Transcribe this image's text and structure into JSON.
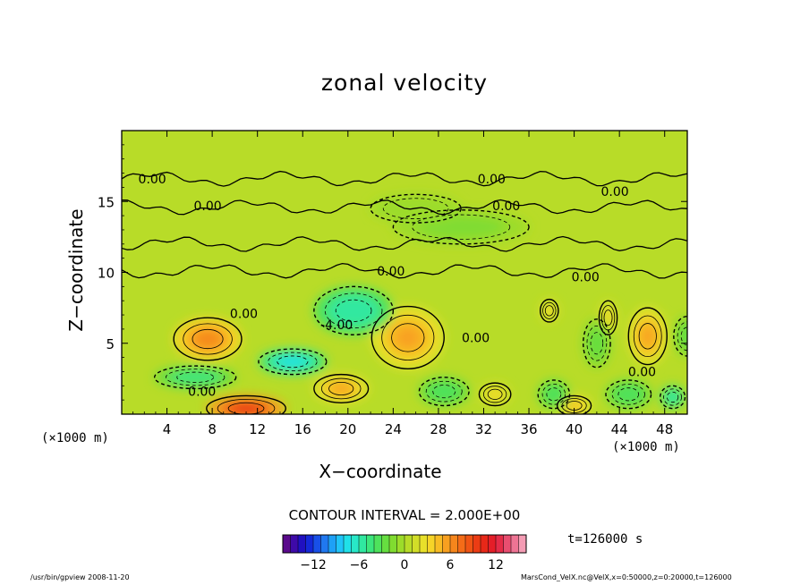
{
  "chart_data": {
    "type": "heatmap",
    "title": "zonal velocity",
    "xlabel": "X−coordinate",
    "ylabel": "Z−coordinate",
    "x_unit_left": "(×1000 m)",
    "x_unit_right": "(×1000 m)",
    "xlim": [
      0,
      50
    ],
    "ylim": [
      0,
      20
    ],
    "x_ticks": [
      4,
      8,
      12,
      16,
      20,
      24,
      28,
      32,
      36,
      40,
      44,
      48
    ],
    "y_ticks": [
      5,
      10,
      15
    ],
    "contour_interval": "CONTOUR INTERVAL = 2.000E+00",
    "time": "t=126000 s",
    "contour_labels": [
      {
        "text": "0.00",
        "x": 2.7,
        "z": 16.6
      },
      {
        "text": "0.00",
        "x": 7.6,
        "z": 14.7
      },
      {
        "text": "0.00",
        "x": 32.7,
        "z": 16.6
      },
      {
        "text": "0.00",
        "x": 34.0,
        "z": 14.7
      },
      {
        "text": "0.00",
        "x": 43.6,
        "z": 15.7
      },
      {
        "text": "0.00",
        "x": 23.8,
        "z": 10.1
      },
      {
        "text": "0.00",
        "x": 41.0,
        "z": 9.7
      },
      {
        "text": "0.00",
        "x": 10.8,
        "z": 7.1
      },
      {
        "text": "-4.00",
        "x": 19.0,
        "z": 6.3
      },
      {
        "text": "0.00",
        "x": 31.3,
        "z": 5.4
      },
      {
        "text": "0.00",
        "x": 46.0,
        "z": 3.0
      },
      {
        "text": "0.00",
        "x": 7.1,
        "z": 1.6
      }
    ],
    "features": [
      {
        "x": 7.6,
        "z": 5.3,
        "value": 6,
        "rx": 3.0,
        "rz": 1.5
      },
      {
        "x": 25.3,
        "z": 5.4,
        "value": 5,
        "rx": 3.2,
        "rz": 2.2
      },
      {
        "x": 19.4,
        "z": 1.8,
        "value": 5,
        "rx": 2.4,
        "rz": 1.0
      },
      {
        "x": 46.5,
        "z": 5.5,
        "value": 5,
        "rx": 1.7,
        "rz": 2.0
      },
      {
        "x": 11.0,
        "z": 0.4,
        "value": 10,
        "rx": 3.5,
        "rz": 0.9
      },
      {
        "x": 33.0,
        "z": 1.4,
        "value": 3,
        "rx": 1.4,
        "rz": 0.8
      },
      {
        "x": 40.0,
        "z": 0.6,
        "value": 4,
        "rx": 1.5,
        "rz": 0.7
      },
      {
        "x": 37.8,
        "z": 7.3,
        "value": 3,
        "rx": 0.8,
        "rz": 0.8
      },
      {
        "x": 43.0,
        "z": 6.8,
        "value": 3,
        "rx": 0.8,
        "rz": 1.2
      },
      {
        "x": 15.1,
        "z": 3.7,
        "value": -8,
        "rx": 3.0,
        "rz": 0.9
      },
      {
        "x": 6.5,
        "z": 2.6,
        "value": -5,
        "rx": 3.6,
        "rz": 0.8
      },
      {
        "x": 20.5,
        "z": 7.3,
        "value": -6,
        "rx": 3.5,
        "rz": 1.7
      },
      {
        "x": 28.5,
        "z": 1.6,
        "value": -4,
        "rx": 2.2,
        "rz": 1.0
      },
      {
        "x": 38.2,
        "z": 1.4,
        "value": -4,
        "rx": 1.4,
        "rz": 1.0
      },
      {
        "x": 42.0,
        "z": 5.0,
        "value": -3,
        "rx": 1.2,
        "rz": 1.7
      },
      {
        "x": 44.8,
        "z": 1.4,
        "value": -4,
        "rx": 2.0,
        "rz": 1.0
      },
      {
        "x": 48.7,
        "z": 1.2,
        "value": -6,
        "rx": 1.1,
        "rz": 0.8
      },
      {
        "x": 50.0,
        "z": 5.5,
        "value": -3,
        "rx": 1.2,
        "rz": 1.4
      },
      {
        "x": 30.0,
        "z": 13.2,
        "value": -1.5,
        "rx": 6.0,
        "rz": 1.2
      },
      {
        "x": 26.0,
        "z": 14.5,
        "value": -1.0,
        "rx": 4.0,
        "rz": 1.0
      }
    ],
    "colorbar": {
      "ticks": [
        "−12",
        "−6",
        "0",
        "6",
        "12"
      ],
      "min": -16,
      "max": 16,
      "colors": [
        "#5a0a8c",
        "#3e0aa8",
        "#2010c0",
        "#1428d8",
        "#1850e8",
        "#2078f0",
        "#1ea0f6",
        "#20c4f8",
        "#20e0e8",
        "#28e8c8",
        "#30e8a0",
        "#3ce67c",
        "#4ee25c",
        "#66de40",
        "#80dc30",
        "#9cdc2a",
        "#b8dc28",
        "#d2de28",
        "#e8e02a",
        "#f6d428",
        "#f8bc24",
        "#f8a020",
        "#f6861c",
        "#f46c18",
        "#f05414",
        "#ec3c14",
        "#e82818",
        "#e41e28",
        "#e42c48",
        "#e84e70",
        "#ee7494",
        "#f49cb4"
      ]
    }
  },
  "footer": {
    "left": "/usr/bin/gpview  2008-11-20",
    "right": "MarsCond_VelX.nc@VelX,x=0:50000,z=0:20000,t=126000"
  }
}
